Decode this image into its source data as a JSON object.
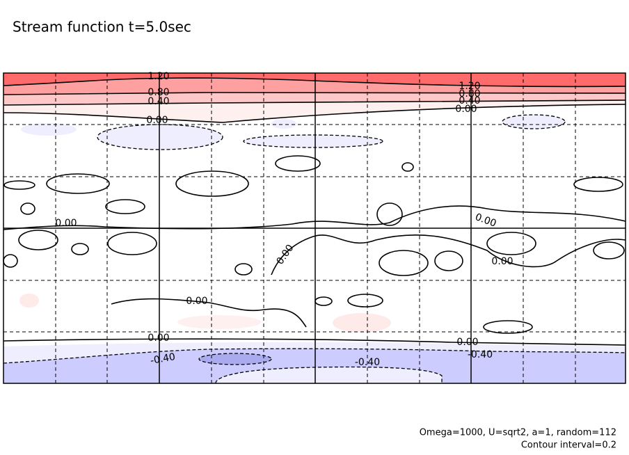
{
  "chart_data": {
    "type": "contour",
    "title": "Stream function t=5.0sec",
    "contour_labels": [
      "1.20",
      "1.20",
      "0.80",
      "0.80",
      "0.40",
      "0.40",
      "0.00",
      "0.00",
      "0.00",
      "0.00",
      "0.00",
      "0.00",
      "0.00",
      "0.00",
      "0.00",
      "-0.40",
      "-0.40",
      "-0.40"
    ],
    "notes": [
      "Omega=1000, U=sqrt2, a=1, random=112",
      "Contour interval=0.2"
    ]
  }
}
